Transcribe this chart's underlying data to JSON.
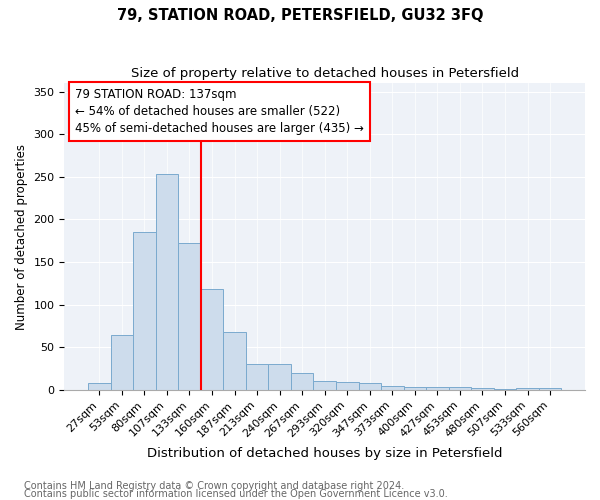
{
  "title": "79, STATION ROAD, PETERSFIELD, GU32 3FQ",
  "subtitle": "Size of property relative to detached houses in Petersfield",
  "xlabel": "Distribution of detached houses by size in Petersfield",
  "ylabel": "Number of detached properties",
  "footnote1": "Contains HM Land Registry data © Crown copyright and database right 2024.",
  "footnote2": "Contains public sector information licensed under the Open Government Licence v3.0.",
  "bar_labels": [
    "27sqm",
    "53sqm",
    "80sqm",
    "107sqm",
    "133sqm",
    "160sqm",
    "187sqm",
    "213sqm",
    "240sqm",
    "267sqm",
    "293sqm",
    "320sqm",
    "347sqm",
    "373sqm",
    "400sqm",
    "427sqm",
    "453sqm",
    "480sqm",
    "507sqm",
    "533sqm",
    "560sqm"
  ],
  "bar_values": [
    8,
    65,
    185,
    253,
    172,
    118,
    68,
    31,
    31,
    20,
    11,
    9,
    8,
    5,
    4,
    4,
    3,
    2,
    1,
    2,
    2
  ],
  "bar_color": "#cddcec",
  "bar_edge_color": "#7aaace",
  "vline_x": 4.5,
  "vline_color": "red",
  "vline_linewidth": 1.5,
  "annotation_line1": "79 STATION ROAD: 137sqm",
  "annotation_line2": "← 54% of detached houses are smaller (522)",
  "annotation_line3": "45% of semi-detached houses are larger (435) →",
  "ylim": [
    0,
    360
  ],
  "yticks": [
    0,
    50,
    100,
    150,
    200,
    250,
    300,
    350
  ],
  "title_fontsize": 10.5,
  "subtitle_fontsize": 9.5,
  "xlabel_fontsize": 9.5,
  "ylabel_fontsize": 8.5,
  "tick_fontsize": 8,
  "annotation_fontsize": 8.5,
  "footnote_fontsize": 7,
  "bg_color": "#eef2f8"
}
